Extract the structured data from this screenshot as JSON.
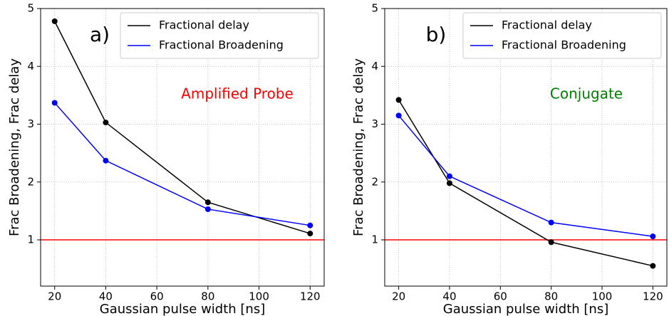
{
  "chart_data": [
    {
      "type": "line",
      "ylabel": "Frac Broadening, Frac delay",
      "xlabel": "Gaussian pulse width [ns]",
      "x": [
        20,
        40,
        80,
        120
      ],
      "series": [
        {
          "name": "Fractional delay",
          "color": "#000000",
          "values": [
            4.78,
            3.03,
            1.65,
            1.11
          ]
        },
        {
          "name": "Fractional Broadening",
          "color": "#0000ff",
          "values": [
            3.37,
            2.37,
            1.53,
            1.25
          ]
        }
      ],
      "xlim": [
        14.5,
        125.5
      ],
      "ylim": [
        0.2,
        5
      ],
      "xticks": [
        20,
        40,
        60,
        80,
        100,
        120
      ],
      "yticks": [
        1,
        2,
        3,
        4,
        5
      ],
      "grid": true,
      "legend": "upper right",
      "hline": {
        "value": 1,
        "color": "#ff0000"
      },
      "annotations": [
        {
          "text": "a)",
          "color": "#000000"
        },
        {
          "text": "Amplified Probe",
          "color": "#ff0000"
        }
      ]
    },
    {
      "type": "line",
      "ylabel": "Frac Broadening, Frac delay",
      "xlabel": "Gaussian pulse width [ns]",
      "x": [
        20,
        40,
        80,
        120
      ],
      "series": [
        {
          "name": "Fractional delay",
          "color": "#000000",
          "values": [
            3.42,
            1.98,
            0.96,
            0.55
          ]
        },
        {
          "name": "Fractional Broadening",
          "color": "#0000ff",
          "values": [
            3.15,
            2.1,
            1.3,
            1.06
          ]
        }
      ],
      "xlim": [
        14.5,
        125.5
      ],
      "ylim": [
        0.2,
        5
      ],
      "xticks": [
        20,
        40,
        60,
        80,
        100,
        120
      ],
      "yticks": [
        1,
        2,
        3,
        4,
        5
      ],
      "grid": true,
      "legend": "upper right",
      "hline": {
        "value": 1,
        "color": "#ff0000"
      },
      "annotations": [
        {
          "text": "b)",
          "color": "#000000"
        },
        {
          "text": "Conjugate",
          "color": "#008000"
        }
      ]
    }
  ]
}
